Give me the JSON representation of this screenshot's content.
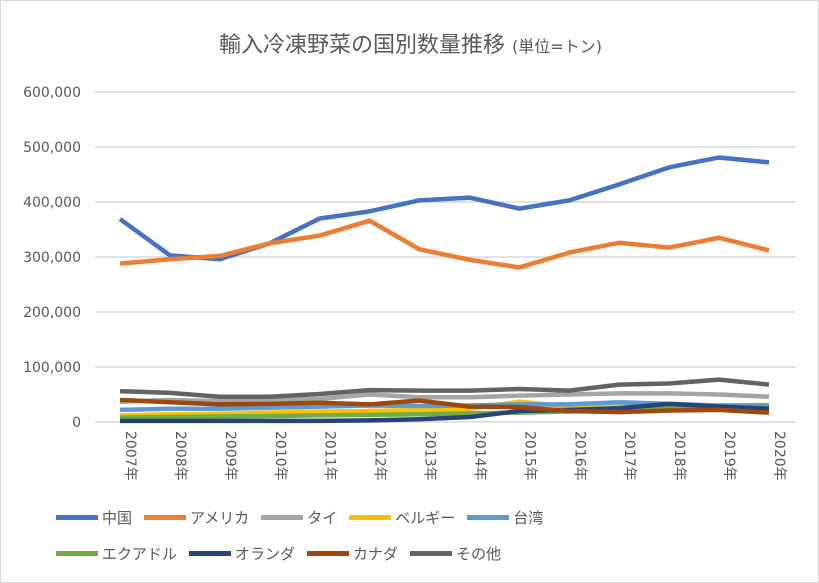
{
  "chart_data": {
    "type": "line",
    "title": "輸入冷凍野菜の国別数量推移",
    "title_unit": "(単位=トン)",
    "categories": [
      "2007年",
      "2008年",
      "2009年",
      "2010年",
      "2011年",
      "2012年",
      "2013年",
      "2014年",
      "2015年",
      "2016年",
      "2017年",
      "2018年",
      "2019年",
      "2020年"
    ],
    "ylim": [
      0,
      600000
    ],
    "yticks": [
      "0",
      "100,000",
      "200,000",
      "300,000",
      "400,000",
      "500,000",
      "600,000"
    ],
    "grid": true,
    "legend": "bottom",
    "series": [
      {
        "name": "中国",
        "color": "#4472C4",
        "values": [
          369000,
          303000,
          296000,
          325000,
          370000,
          383000,
          403000,
          408000,
          388000,
          403000,
          432000,
          463000,
          481000,
          472000
        ]
      },
      {
        "name": "アメリカ",
        "color": "#ED7D31",
        "values": [
          288000,
          296000,
          302000,
          325000,
          339000,
          366000,
          314000,
          295000,
          281000,
          308000,
          326000,
          317000,
          335000,
          312000
        ]
      },
      {
        "name": "タイ",
        "color": "#A5A5A5",
        "values": [
          37000,
          40000,
          38000,
          40000,
          42000,
          50000,
          45000,
          45000,
          48000,
          50000,
          52000,
          52000,
          50000,
          46000
        ]
      },
      {
        "name": "ベルギー",
        "color": "#FFC000",
        "values": [
          12000,
          14000,
          15000,
          17000,
          19000,
          20000,
          22000,
          24000,
          37000,
          28000,
          30000,
          31000,
          30000,
          31000
        ]
      },
      {
        "name": "台湾",
        "color": "#5B9BD5",
        "values": [
          22000,
          24000,
          24000,
          26000,
          28000,
          30000,
          29000,
          30000,
          32000,
          32000,
          36000,
          33000,
          30000,
          30000
        ]
      },
      {
        "name": "エクアドル",
        "color": "#70AD47",
        "values": [
          8000,
          9000,
          10000,
          11000,
          12000,
          13000,
          14000,
          16000,
          17000,
          19000,
          24000,
          28000,
          26000,
          25000
        ]
      },
      {
        "name": "オランダ",
        "color": "#264478",
        "values": [
          2000,
          2000,
          2000,
          2000,
          2000,
          3000,
          5000,
          9000,
          20000,
          22000,
          25000,
          33000,
          28000,
          24000
        ]
      },
      {
        "name": "カナダ",
        "color": "#9E480E",
        "values": [
          40000,
          36000,
          32000,
          33000,
          35000,
          32000,
          39000,
          28000,
          27000,
          20000,
          18000,
          21000,
          22000,
          17000
        ]
      },
      {
        "name": "その他",
        "color": "#636363",
        "values": [
          56000,
          53000,
          46000,
          46000,
          51000,
          58000,
          57000,
          57000,
          60000,
          57000,
          68000,
          70000,
          77000,
          68000
        ]
      }
    ]
  }
}
